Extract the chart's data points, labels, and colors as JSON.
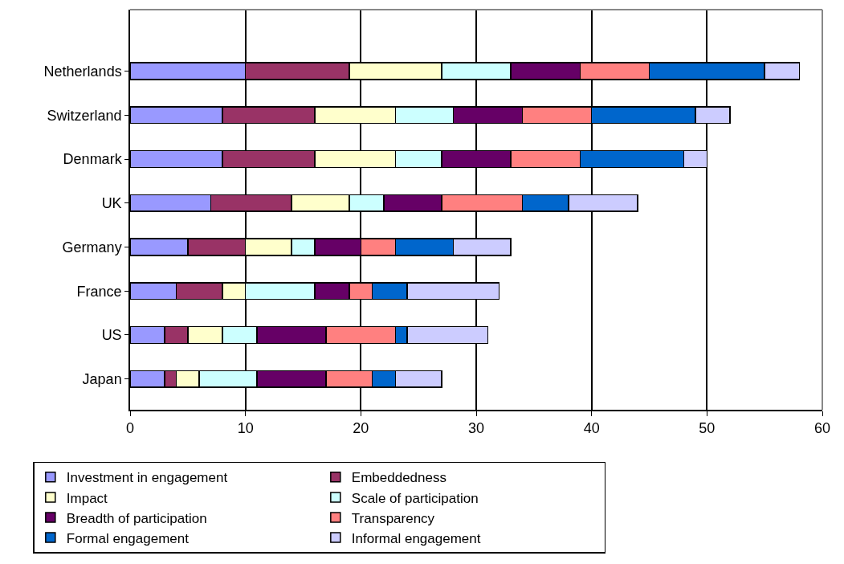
{
  "chart_data": {
    "type": "bar",
    "orientation": "horizontal",
    "stacked": true,
    "categories": [
      "Netherlands",
      "Switzerland",
      "Denmark",
      "UK",
      "Germany",
      "France",
      "US",
      "Japan"
    ],
    "series": [
      {
        "name": "Investment in engagement",
        "color": "#9999ff",
        "values": [
          10,
          8,
          8,
          7,
          5,
          4,
          3,
          3
        ]
      },
      {
        "name": "Embeddedness",
        "color": "#993366",
        "values": [
          9,
          8,
          8,
          7,
          5,
          4,
          2,
          1
        ]
      },
      {
        "name": "Impact",
        "color": "#ffffcc",
        "values": [
          8,
          7,
          7,
          5,
          4,
          2,
          3,
          2
        ]
      },
      {
        "name": "Scale of participation",
        "color": "#ccffff",
        "values": [
          6,
          5,
          4,
          3,
          2,
          6,
          3,
          5
        ]
      },
      {
        "name": "Breadth of participation",
        "color": "#660066",
        "values": [
          6,
          6,
          6,
          5,
          4,
          3,
          6,
          6
        ]
      },
      {
        "name": "Transparency",
        "color": "#ff8080",
        "values": [
          6,
          6,
          6,
          7,
          3,
          2,
          6,
          4
        ]
      },
      {
        "name": "Formal engagement",
        "color": "#0066cc",
        "values": [
          10,
          9,
          9,
          4,
          5,
          3,
          1,
          2
        ]
      },
      {
        "name": "Informal engagement",
        "color": "#ccccff",
        "values": [
          3,
          3,
          2,
          6,
          5,
          8,
          7,
          4
        ]
      }
    ],
    "xlim": [
      0,
      60
    ],
    "xticks": [
      0,
      10,
      20,
      30,
      40,
      50,
      60
    ],
    "grid": "x",
    "legend": "bottom"
  }
}
